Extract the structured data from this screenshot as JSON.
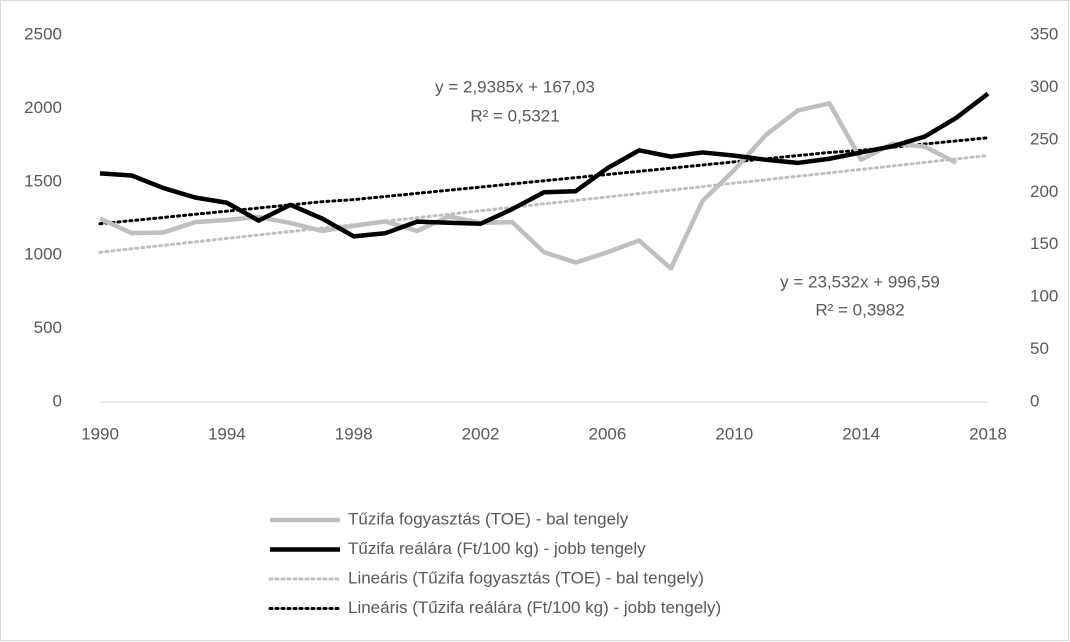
{
  "chart_data": {
    "type": "line",
    "x": [
      1990,
      1991,
      1992,
      1993,
      1994,
      1995,
      1996,
      1997,
      1998,
      1999,
      2000,
      2001,
      2002,
      2003,
      2004,
      2005,
      2006,
      2007,
      2008,
      2009,
      2010,
      2011,
      2012,
      2013,
      2014,
      2015,
      2016,
      2017,
      2018
    ],
    "xlim": [
      1990,
      2018
    ],
    "xticks": [
      1990,
      1994,
      1998,
      2002,
      2006,
      2010,
      2014,
      2018
    ],
    "ylim": [
      0,
      2500
    ],
    "yticks": [
      0,
      500,
      1000,
      1500,
      2000,
      2500
    ],
    "y2lim": [
      0,
      350
    ],
    "y2ticks": [
      0,
      50,
      100,
      150,
      200,
      250,
      300,
      350
    ],
    "legend": "bottom",
    "series": [
      {
        "name": "Tűzifa fogyasztás (TOE) - bal tengely",
        "color": "#bfbfbf",
        "style": "solid",
        "values": [
          1250,
          1150,
          1155,
          1225,
          1240,
          1260,
          1220,
          1165,
          1200,
          1230,
          1165,
          1265,
          1220,
          1225,
          1020,
          950,
          1020,
          1100,
          910,
          1370,
          1580,
          1820,
          1985,
          2035,
          1650,
          1760,
          1740,
          1630,
          null
        ]
      },
      {
        "name": "Tűzifa reálára (Ft/100 kg) - jobb tengely",
        "color": "#000000",
        "style": "solid",
        "axis": "y2",
        "values": [
          218,
          216,
          204,
          195,
          190,
          173,
          188,
          175,
          158,
          161,
          172,
          171,
          170,
          184,
          200,
          201,
          223,
          240,
          234,
          238,
          235,
          231,
          228,
          232,
          238,
          244,
          253,
          271,
          294
        ]
      },
      {
        "name": "Lineáris (Tűzifa fogyasztás (TOE) - bal tengely)",
        "color": "#bfbfbf",
        "style": "dotted",
        "values": [
          1020,
          1044,
          1067,
          1091,
          1114,
          1138,
          1161,
          1185,
          1208,
          1232,
          1255,
          1279,
          1303,
          1326,
          1350,
          1373,
          1397,
          1420,
          1444,
          1467,
          1491,
          1514,
          1538,
          1561,
          1585,
          1608,
          1632,
          1656,
          1679
        ]
      },
      {
        "name": "Lineáris (Tűzifa reálára (Ft/100 kg) - jobb tengely)",
        "color": "#000000",
        "style": "dotted",
        "axis": "y2",
        "values": [
          170,
          173,
          176,
          179,
          182,
          185,
          188,
          191,
          193,
          196,
          199,
          202,
          205,
          208,
          211,
          214,
          217,
          220,
          223,
          226,
          229,
          232,
          235,
          238,
          240,
          243,
          246,
          249,
          252
        ]
      }
    ],
    "annotations": [
      "y = 2,9385x + 167,03",
      "R² = 0,5321",
      "y = 23,532x + 996,59",
      "R² = 0,3982"
    ]
  }
}
